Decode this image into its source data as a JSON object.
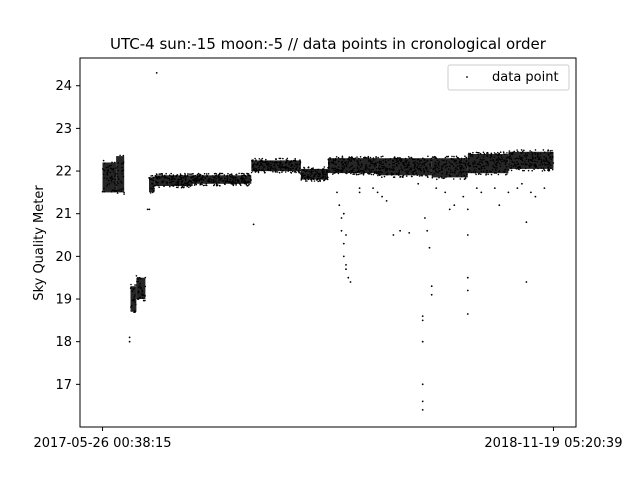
{
  "chart_data": {
    "type": "scatter",
    "title": "UTC-4 sun:-15 moon:-5 // data points in cronological order",
    "xlabel": "",
    "ylabel": "Sky Quality Meter",
    "x_tick_labels": [
      "2017-05-26 00:38:15",
      "2018-11-19 05:20:39"
    ],
    "x_range": [
      -0.05,
      1.05
    ],
    "ylim": [
      16.0,
      24.65
    ],
    "y_ticks": [
      17,
      18,
      19,
      20,
      21,
      22,
      23,
      24
    ],
    "grid": false,
    "legend": {
      "position": "top-right",
      "entries": [
        "data point"
      ]
    },
    "marker_color": "#000000",
    "bands": [
      {
        "x": [
          0.0,
          0.03
        ],
        "y": [
          21.5,
          22.2
        ]
      },
      {
        "x": [
          0.03,
          0.048
        ],
        "y": [
          21.5,
          22.35
        ]
      },
      {
        "x": [
          0.062,
          0.075
        ],
        "y": [
          18.7,
          19.3
        ]
      },
      {
        "x": [
          0.075,
          0.095
        ],
        "y": [
          19.0,
          19.5
        ]
      },
      {
        "x": [
          0.103,
          0.115
        ],
        "y": [
          21.5,
          21.85
        ]
      },
      {
        "x": [
          0.115,
          0.2
        ],
        "y": [
          21.65,
          21.9
        ]
      },
      {
        "x": [
          0.2,
          0.33
        ],
        "y": [
          21.7,
          21.9
        ]
      },
      {
        "x": [
          0.33,
          0.44
        ],
        "y": [
          22.0,
          22.25
        ]
      },
      {
        "x": [
          0.44,
          0.5
        ],
        "y": [
          21.8,
          22.05
        ]
      },
      {
        "x": [
          0.5,
          0.61
        ],
        "y": [
          21.95,
          22.3
        ]
      },
      {
        "x": [
          0.61,
          0.73
        ],
        "y": [
          21.9,
          22.3
        ]
      },
      {
        "x": [
          0.73,
          0.81
        ],
        "y": [
          21.85,
          22.3
        ]
      },
      {
        "x": [
          0.81,
          0.9
        ],
        "y": [
          21.95,
          22.4
        ]
      },
      {
        "x": [
          0.9,
          1.0
        ],
        "y": [
          22.05,
          22.45
        ]
      }
    ],
    "points": [
      [
        0.12,
        24.3
      ],
      [
        0.06,
        18.1
      ],
      [
        0.06,
        18.0
      ],
      [
        0.1,
        21.1
      ],
      [
        0.104,
        21.1
      ],
      [
        0.335,
        20.75
      ],
      [
        0.52,
        21.5
      ],
      [
        0.525,
        21.2
      ],
      [
        0.53,
        20.9
      ],
      [
        0.53,
        20.6
      ],
      [
        0.535,
        20.3
      ],
      [
        0.535,
        20.0
      ],
      [
        0.54,
        19.8
      ],
      [
        0.54,
        19.7
      ],
      [
        0.545,
        19.5
      ],
      [
        0.55,
        19.4
      ],
      [
        0.535,
        21.0
      ],
      [
        0.54,
        20.5
      ],
      [
        0.57,
        21.6
      ],
      [
        0.57,
        21.5
      ],
      [
        0.6,
        21.6
      ],
      [
        0.61,
        21.5
      ],
      [
        0.62,
        21.4
      ],
      [
        0.63,
        21.3
      ],
      [
        0.645,
        20.5
      ],
      [
        0.66,
        20.6
      ],
      [
        0.68,
        20.55
      ],
      [
        0.7,
        21.7
      ],
      [
        0.71,
        18.5
      ],
      [
        0.71,
        18.6
      ],
      [
        0.71,
        18.0
      ],
      [
        0.71,
        17.0
      ],
      [
        0.71,
        16.6
      ],
      [
        0.71,
        16.4
      ],
      [
        0.715,
        20.9
      ],
      [
        0.72,
        20.6
      ],
      [
        0.73,
        19.3
      ],
      [
        0.73,
        19.1
      ],
      [
        0.725,
        20.2
      ],
      [
        0.74,
        21.6
      ],
      [
        0.76,
        21.5
      ],
      [
        0.77,
        21.1
      ],
      [
        0.78,
        21.2
      ],
      [
        0.8,
        21.4
      ],
      [
        0.81,
        21.1
      ],
      [
        0.81,
        20.5
      ],
      [
        0.81,
        19.5
      ],
      [
        0.81,
        19.2
      ],
      [
        0.81,
        18.65
      ],
      [
        0.83,
        21.6
      ],
      [
        0.84,
        21.5
      ],
      [
        0.87,
        21.6
      ],
      [
        0.88,
        21.2
      ],
      [
        0.9,
        21.5
      ],
      [
        0.92,
        21.6
      ],
      [
        0.93,
        21.7
      ],
      [
        0.94,
        20.8
      ],
      [
        0.94,
        19.4
      ],
      [
        0.95,
        21.5
      ],
      [
        0.96,
        21.4
      ],
      [
        0.98,
        21.6
      ]
    ]
  }
}
